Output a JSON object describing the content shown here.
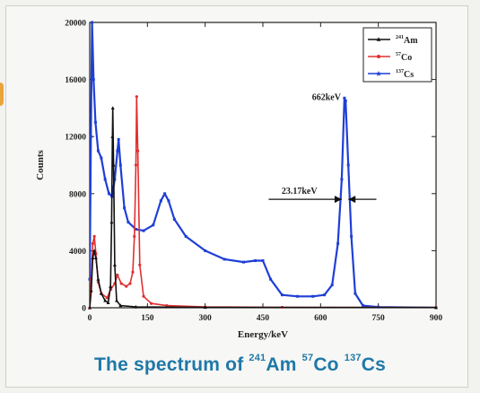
{
  "chart_data": {
    "type": "line",
    "xlabel": "Energy/keV",
    "ylabel": "Counts",
    "xlim": [
      0,
      900
    ],
    "ylim": [
      0,
      20000
    ],
    "x_ticks": [
      "0",
      "150",
      "300",
      "450",
      "600",
      "750",
      "900"
    ],
    "y_ticks": [
      "0",
      "4000",
      "8000",
      "12000",
      "16000",
      "20000"
    ],
    "grid": false,
    "legend": {
      "placement": "top-right"
    },
    "series": [
      {
        "name": "241Am",
        "name_parts": {
          "sup": "241",
          "base": "Am"
        },
        "color": "#111111",
        "marker": "triangle",
        "points": [
          [
            0,
            0
          ],
          [
            4,
            1200
          ],
          [
            8,
            3500
          ],
          [
            12,
            4000
          ],
          [
            16,
            3500
          ],
          [
            22,
            2000
          ],
          [
            30,
            1000
          ],
          [
            40,
            500
          ],
          [
            48,
            350
          ],
          [
            54,
            1500
          ],
          [
            57,
            6000
          ],
          [
            59,
            12000
          ],
          [
            60,
            14000
          ],
          [
            62,
            10000
          ],
          [
            65,
            3000
          ],
          [
            70,
            500
          ],
          [
            80,
            150
          ],
          [
            120,
            60
          ],
          [
            300,
            30
          ],
          [
            900,
            20
          ]
        ]
      },
      {
        "name": "57Co",
        "name_parts": {
          "sup": "57",
          "base": "Co"
        },
        "color": "#e03030",
        "marker": "circle",
        "points": [
          [
            0,
            0
          ],
          [
            4,
            2000
          ],
          [
            8,
            4500
          ],
          [
            12,
            5000
          ],
          [
            16,
            3800
          ],
          [
            22,
            1800
          ],
          [
            30,
            1000
          ],
          [
            45,
            700
          ],
          [
            55,
            1300
          ],
          [
            65,
            1700
          ],
          [
            72,
            2300
          ],
          [
            82,
            1700
          ],
          [
            95,
            1500
          ],
          [
            105,
            1700
          ],
          [
            112,
            2500
          ],
          [
            116,
            5000
          ],
          [
            120,
            10000
          ],
          [
            122,
            14800
          ],
          [
            125,
            11000
          ],
          [
            130,
            3000
          ],
          [
            140,
            800
          ],
          [
            160,
            300
          ],
          [
            200,
            150
          ],
          [
            300,
            60
          ],
          [
            500,
            30
          ],
          [
            900,
            20
          ]
        ]
      },
      {
        "name": "137Cs",
        "name_parts": {
          "sup": "137",
          "base": "Cs"
        },
        "color": "#1f3fd6",
        "marker": "star",
        "points": [
          [
            0,
            2000
          ],
          [
            3,
            12000
          ],
          [
            6,
            20000
          ],
          [
            10,
            16000
          ],
          [
            15,
            13000
          ],
          [
            22,
            11000
          ],
          [
            30,
            10500
          ],
          [
            40,
            9000
          ],
          [
            50,
            8000
          ],
          [
            58,
            7800
          ],
          [
            65,
            9000
          ],
          [
            72,
            11000
          ],
          [
            75,
            11800
          ],
          [
            80,
            10000
          ],
          [
            90,
            7000
          ],
          [
            100,
            6000
          ],
          [
            120,
            5500
          ],
          [
            140,
            5400
          ],
          [
            165,
            5800
          ],
          [
            185,
            7500
          ],
          [
            195,
            8000
          ],
          [
            205,
            7500
          ],
          [
            220,
            6200
          ],
          [
            250,
            5000
          ],
          [
            300,
            4000
          ],
          [
            350,
            3400
          ],
          [
            400,
            3200
          ],
          [
            430,
            3300
          ],
          [
            450,
            3300
          ],
          [
            470,
            2000
          ],
          [
            500,
            900
          ],
          [
            540,
            800
          ],
          [
            580,
            800
          ],
          [
            610,
            900
          ],
          [
            630,
            1600
          ],
          [
            645,
            4500
          ],
          [
            655,
            9000
          ],
          [
            662,
            14700
          ],
          [
            665,
            14500
          ],
          [
            672,
            10000
          ],
          [
            680,
            5000
          ],
          [
            690,
            1000
          ],
          [
            710,
            150
          ],
          [
            750,
            50
          ],
          [
            900,
            0
          ]
        ]
      }
    ],
    "annotations": {
      "peak_label": "662keV",
      "peak_point": [
        662,
        14700
      ],
      "fwhm_label": "23.17keV",
      "fwhm_level": 7600
    },
    "caption": {
      "prefix": "The spectrum of",
      "items": [
        {
          "sup": "241",
          "base": "Am"
        },
        {
          "sup": "57",
          "base": "Co"
        },
        {
          "sup": "137",
          "base": "Cs"
        }
      ]
    }
  }
}
